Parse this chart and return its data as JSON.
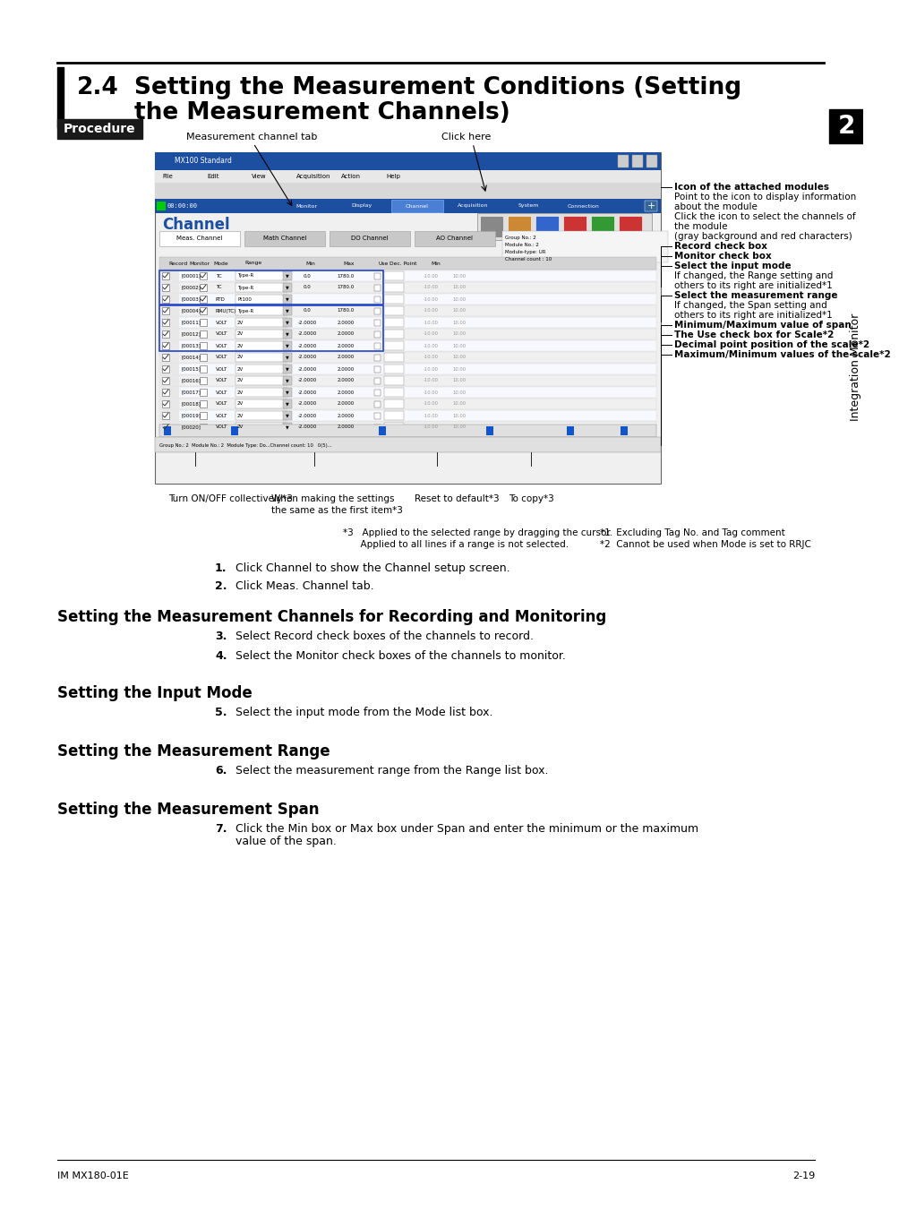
{
  "title_number": "2.4",
  "title_line1": "Setting the Measurement Conditions (Setting",
  "title_line2": "the Measurement Channels)",
  "procedure_label": "Procedure",
  "section_headers": [
    "Setting the Measurement Channels for Recording and Monitoring",
    "Setting the Input Mode",
    "Setting the Measurement Range",
    "Setting the Measurement Span"
  ],
  "steps_1_2": [
    {
      "num": "1.",
      "text": "Click Channel to show the Channel setup screen."
    },
    {
      "num": "2.",
      "text": "Click Meas. Channel tab."
    }
  ],
  "steps_3_4": [
    {
      "num": "3.",
      "text": "Select Record check boxes of the channels to record."
    },
    {
      "num": "4.",
      "text": "Select the Monitor check boxes of the channels to monitor."
    }
  ],
  "step_5": {
    "num": "5.",
    "text": "Select the input mode from the Mode list box."
  },
  "step_6": {
    "num": "6.",
    "text": "Select the measurement range from the Range list box."
  },
  "step_7_line1": "Click the Min box or Max box under Span and enter the minimum or the maximum",
  "step_7_line2": "value of the span.",
  "right_ann": [
    {
      "text": "Icon of the attached modules",
      "bold": true
    },
    {
      "text": "Point to the icon to display information",
      "bold": false
    },
    {
      "text": "about the module",
      "bold": false
    },
    {
      "text": "Click the icon to select the channels of",
      "bold": false
    },
    {
      "text": "the module",
      "bold": false
    },
    {
      "text": "(gray background and red characters)",
      "bold": false
    },
    {
      "text": "Record check box",
      "bold": true
    },
    {
      "text": "Monitor check box",
      "bold": true
    },
    {
      "text": "Select the input mode",
      "bold": true
    },
    {
      "text": "If changed, the Range setting and",
      "bold": false
    },
    {
      "text": "others to its right are initialized*1",
      "bold": false
    },
    {
      "text": "Select the measurement range",
      "bold": true
    },
    {
      "text": "If changed, the Span setting and",
      "bold": false
    },
    {
      "text": "others to its right are initialized*1",
      "bold": false
    },
    {
      "text": "Minimum/Maximum value of span",
      "bold": true
    },
    {
      "text": "The Use check box for Scale*2",
      "bold": true
    },
    {
      "text": "Decimal point position of the scale*2",
      "bold": true
    },
    {
      "text": "Maximum/Minimum values of the scale*2",
      "bold": true
    }
  ],
  "label_meas_tab": "Measurement channel tab",
  "label_click_here": "Click here",
  "bottom_labels": [
    "Turn ON/OFF collectively*3",
    "When making the settings\nthe same as the first item*3",
    "Reset to default*3",
    "To copy*3"
  ],
  "footnote_3a": "*3   Applied to the selected range by dragging the cursor.",
  "footnote_3b": "      Applied to all lines if a range is not selected.",
  "footnote_1": "*1  Excluding Tag No. and Tag comment",
  "footnote_2": "*2  Cannot be used when Mode is set to RRJC",
  "side_label": "Integration Monitor",
  "side_number": "2",
  "footer_left": "IM MX180-01E",
  "footer_right": "2-19",
  "bg_color": "#ffffff"
}
